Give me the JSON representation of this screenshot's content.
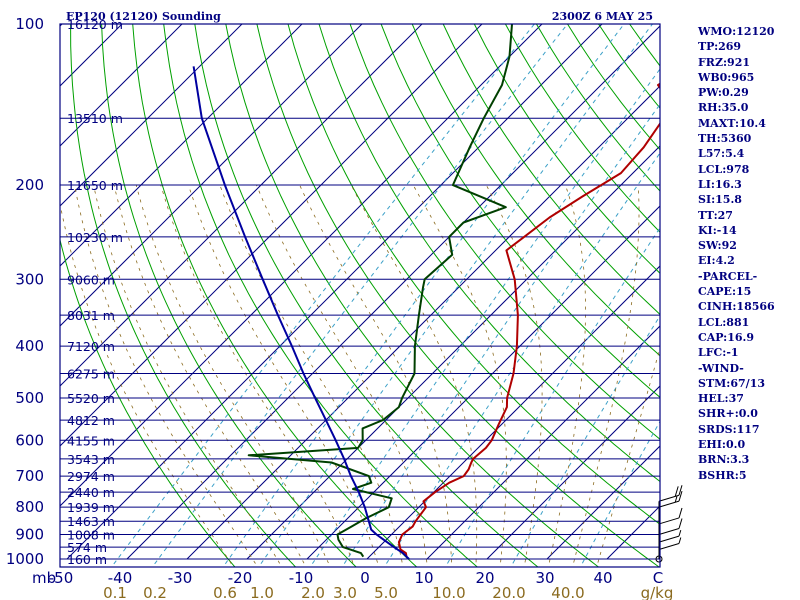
{
  "header": {
    "station": "EP120 (12120) Sounding",
    "time": "2300Z  6 MAY 25"
  },
  "indices": [
    "WMO:12120",
    "TP:269",
    "FRZ:921",
    "WB0:965",
    "PW:0.29",
    "RH:35.0",
    "MAXT:10.4",
    "TH:5360",
    "L57:5.4",
    "LCL:978",
    "LI:16.3",
    "SI:15.8",
    "TT:27",
    "KI:-14",
    "SW:92",
    "EI:4.2",
    "-PARCEL-",
    "CAPE:15",
    "CINH:18566",
    "LCL:881",
    "CAP:16.9",
    "LFC:-1",
    "-WIND-",
    "STM:67/13",
    "HEL:37",
    "SHR+:0.0",
    "SRDS:117",
    "EHI:0.0",
    "BRN:3.3",
    "BSHR:5"
  ],
  "chart_data": {
    "type": "line",
    "diagram": "skew-T log-P",
    "y_axis": {
      "unit_label": "mb",
      "range": [
        1000,
        100
      ],
      "scale": "log",
      "ticks": [
        100,
        200,
        300,
        400,
        500,
        600,
        700,
        800,
        900,
        1000
      ]
    },
    "x_axis": {
      "temperature_ticks": [
        "-50",
        "-40",
        "-30",
        "-20",
        "-10",
        "0",
        "10",
        "20",
        "30",
        "40",
        "C"
      ],
      "temperature_values": [
        -50,
        -40,
        -30,
        -20,
        -10,
        0,
        10,
        20,
        30,
        40
      ],
      "mixing_ratio_ticks": [
        "0.1",
        "0.2",
        "0.6",
        "1.0",
        "2.0",
        "3.0",
        "5.0",
        "10.0",
        "20.0",
        "40.0",
        "g/kg"
      ],
      "mixing_ratio_values": [
        0.1,
        0.2,
        0.6,
        1.0,
        2.0,
        3.0,
        5.0,
        10.0,
        20.0,
        40.0
      ]
    },
    "height_labels": [
      {
        "p": 100,
        "text": "16120 m"
      },
      {
        "p": 150,
        "text": "13510 m"
      },
      {
        "p": 200,
        "text": "11650 m"
      },
      {
        "p": 250,
        "text": "10230 m"
      },
      {
        "p": 300,
        "text": "9060 m"
      },
      {
        "p": 350,
        "text": "8031 m"
      },
      {
        "p": 400,
        "text": "7120 m"
      },
      {
        "p": 450,
        "text": "6275 m"
      },
      {
        "p": 500,
        "text": "5520 m"
      },
      {
        "p": 550,
        "text": "4812 m"
      },
      {
        "p": 600,
        "text": "4155 m"
      },
      {
        "p": 650,
        "text": "3543 m"
      },
      {
        "p": 700,
        "text": "2974 m"
      },
      {
        "p": 750,
        "text": "2440 m"
      },
      {
        "p": 800,
        "text": "1939 m"
      },
      {
        "p": 850,
        "text": "1463 m"
      },
      {
        "p": 900,
        "text": "1008 m"
      },
      {
        "p": 950,
        "text": "574 m"
      },
      {
        "p": 1000,
        "text": "160 m"
      }
    ],
    "series": [
      {
        "name": "temperature",
        "color": "#b00000",
        "points": [
          [
            990,
            6.2
          ],
          [
            975,
            5.5
          ],
          [
            960,
            4.0
          ],
          [
            930,
            2.5
          ],
          [
            900,
            1.8
          ],
          [
            870,
            2.2
          ],
          [
            850,
            1.8
          ],
          [
            800,
            1.2
          ],
          [
            780,
            -0.2
          ],
          [
            750,
            0.2
          ],
          [
            720,
            1.0
          ],
          [
            700,
            2.3
          ],
          [
            680,
            2.0
          ],
          [
            660,
            1.3
          ],
          [
            650,
            1.0
          ],
          [
            620,
            1.3
          ],
          [
            600,
            1.0
          ],
          [
            560,
            -0.5
          ],
          [
            520,
            -2.0
          ],
          [
            500,
            -3.5
          ],
          [
            450,
            -6.5
          ],
          [
            400,
            -10.5
          ],
          [
            350,
            -15.5
          ],
          [
            300,
            -22.0
          ],
          [
            265,
            -28.2
          ],
          [
            250,
            -27.5
          ],
          [
            230,
            -26.5
          ],
          [
            210,
            -24.5
          ],
          [
            190,
            -22.0
          ],
          [
            170,
            -22.5
          ],
          [
            150,
            -24.0
          ],
          [
            140,
            -25.5
          ],
          [
            130,
            -30.5
          ],
          [
            122,
            -29.0
          ],
          [
            113,
            -30.0
          ],
          [
            100,
            -34.0
          ]
        ]
      },
      {
        "name": "dewpoint",
        "color": "#004000",
        "points": [
          [
            990,
            -1.0
          ],
          [
            975,
            -2.0
          ],
          [
            950,
            -6.0
          ],
          [
            920,
            -8.0
          ],
          [
            900,
            -9.0
          ],
          [
            870,
            -8.0
          ],
          [
            840,
            -7.0
          ],
          [
            800,
            -5.0
          ],
          [
            770,
            -6.0
          ],
          [
            740,
            -14.0
          ],
          [
            720,
            -12.0
          ],
          [
            700,
            -13.5
          ],
          [
            660,
            -22.0
          ],
          [
            640,
            -37.0
          ],
          [
            620,
            -20.0
          ],
          [
            600,
            -20.5
          ],
          [
            570,
            -22.5
          ],
          [
            550,
            -20.5
          ],
          [
            520,
            -20.0
          ],
          [
            500,
            -21.0
          ],
          [
            450,
            -23.0
          ],
          [
            400,
            -27.5
          ],
          [
            350,
            -32.0
          ],
          [
            310,
            -36.0
          ],
          [
            300,
            -37.0
          ],
          [
            270,
            -36.5
          ],
          [
            250,
            -40.0
          ],
          [
            235,
            -40.0
          ],
          [
            220,
            -35.5
          ],
          [
            200,
            -48.0
          ],
          [
            170,
            -51.5
          ],
          [
            150,
            -54.0
          ],
          [
            130,
            -56.5
          ],
          [
            115,
            -60.0
          ],
          [
            100,
            -65.0
          ]
        ]
      },
      {
        "name": "parcel",
        "color": "#0000a0",
        "points": [
          [
            1000,
            7.0
          ],
          [
            975,
            5.0
          ],
          [
            950,
            2.5
          ],
          [
            900,
            -2.5
          ],
          [
            881,
            -4.2
          ],
          [
            850,
            -6.0
          ],
          [
            800,
            -9.0
          ],
          [
            750,
            -12.5
          ],
          [
            700,
            -16.5
          ],
          [
            650,
            -20.5
          ],
          [
            600,
            -25.0
          ],
          [
            550,
            -30.0
          ],
          [
            500,
            -35.5
          ],
          [
            450,
            -41.5
          ],
          [
            400,
            -48.0
          ],
          [
            350,
            -55.5
          ],
          [
            300,
            -64.0
          ],
          [
            250,
            -74.0
          ],
          [
            200,
            -86.0
          ],
          [
            150,
            -101.0
          ],
          [
            120,
            -111.0
          ]
        ]
      }
    ],
    "wind_barbs": [
      {
        "p": 1000,
        "spd_kt": 0
      },
      {
        "p": 960,
        "spd_kt": 5
      },
      {
        "p": 930,
        "spd_kt": 5
      },
      {
        "p": 900,
        "spd_kt": 10
      },
      {
        "p": 860,
        "spd_kt": 10
      },
      {
        "p": 800,
        "spd_kt": 15
      },
      {
        "p": 780,
        "spd_kt": 20
      }
    ],
    "colors": {
      "frame": "#000080",
      "isobar": "#000080",
      "isotherm": "#000080",
      "dry_adiabat": "#00a000",
      "mixing_ratio": "#3ca0c8",
      "moist_adiabat": "#8b6b1f"
    }
  }
}
